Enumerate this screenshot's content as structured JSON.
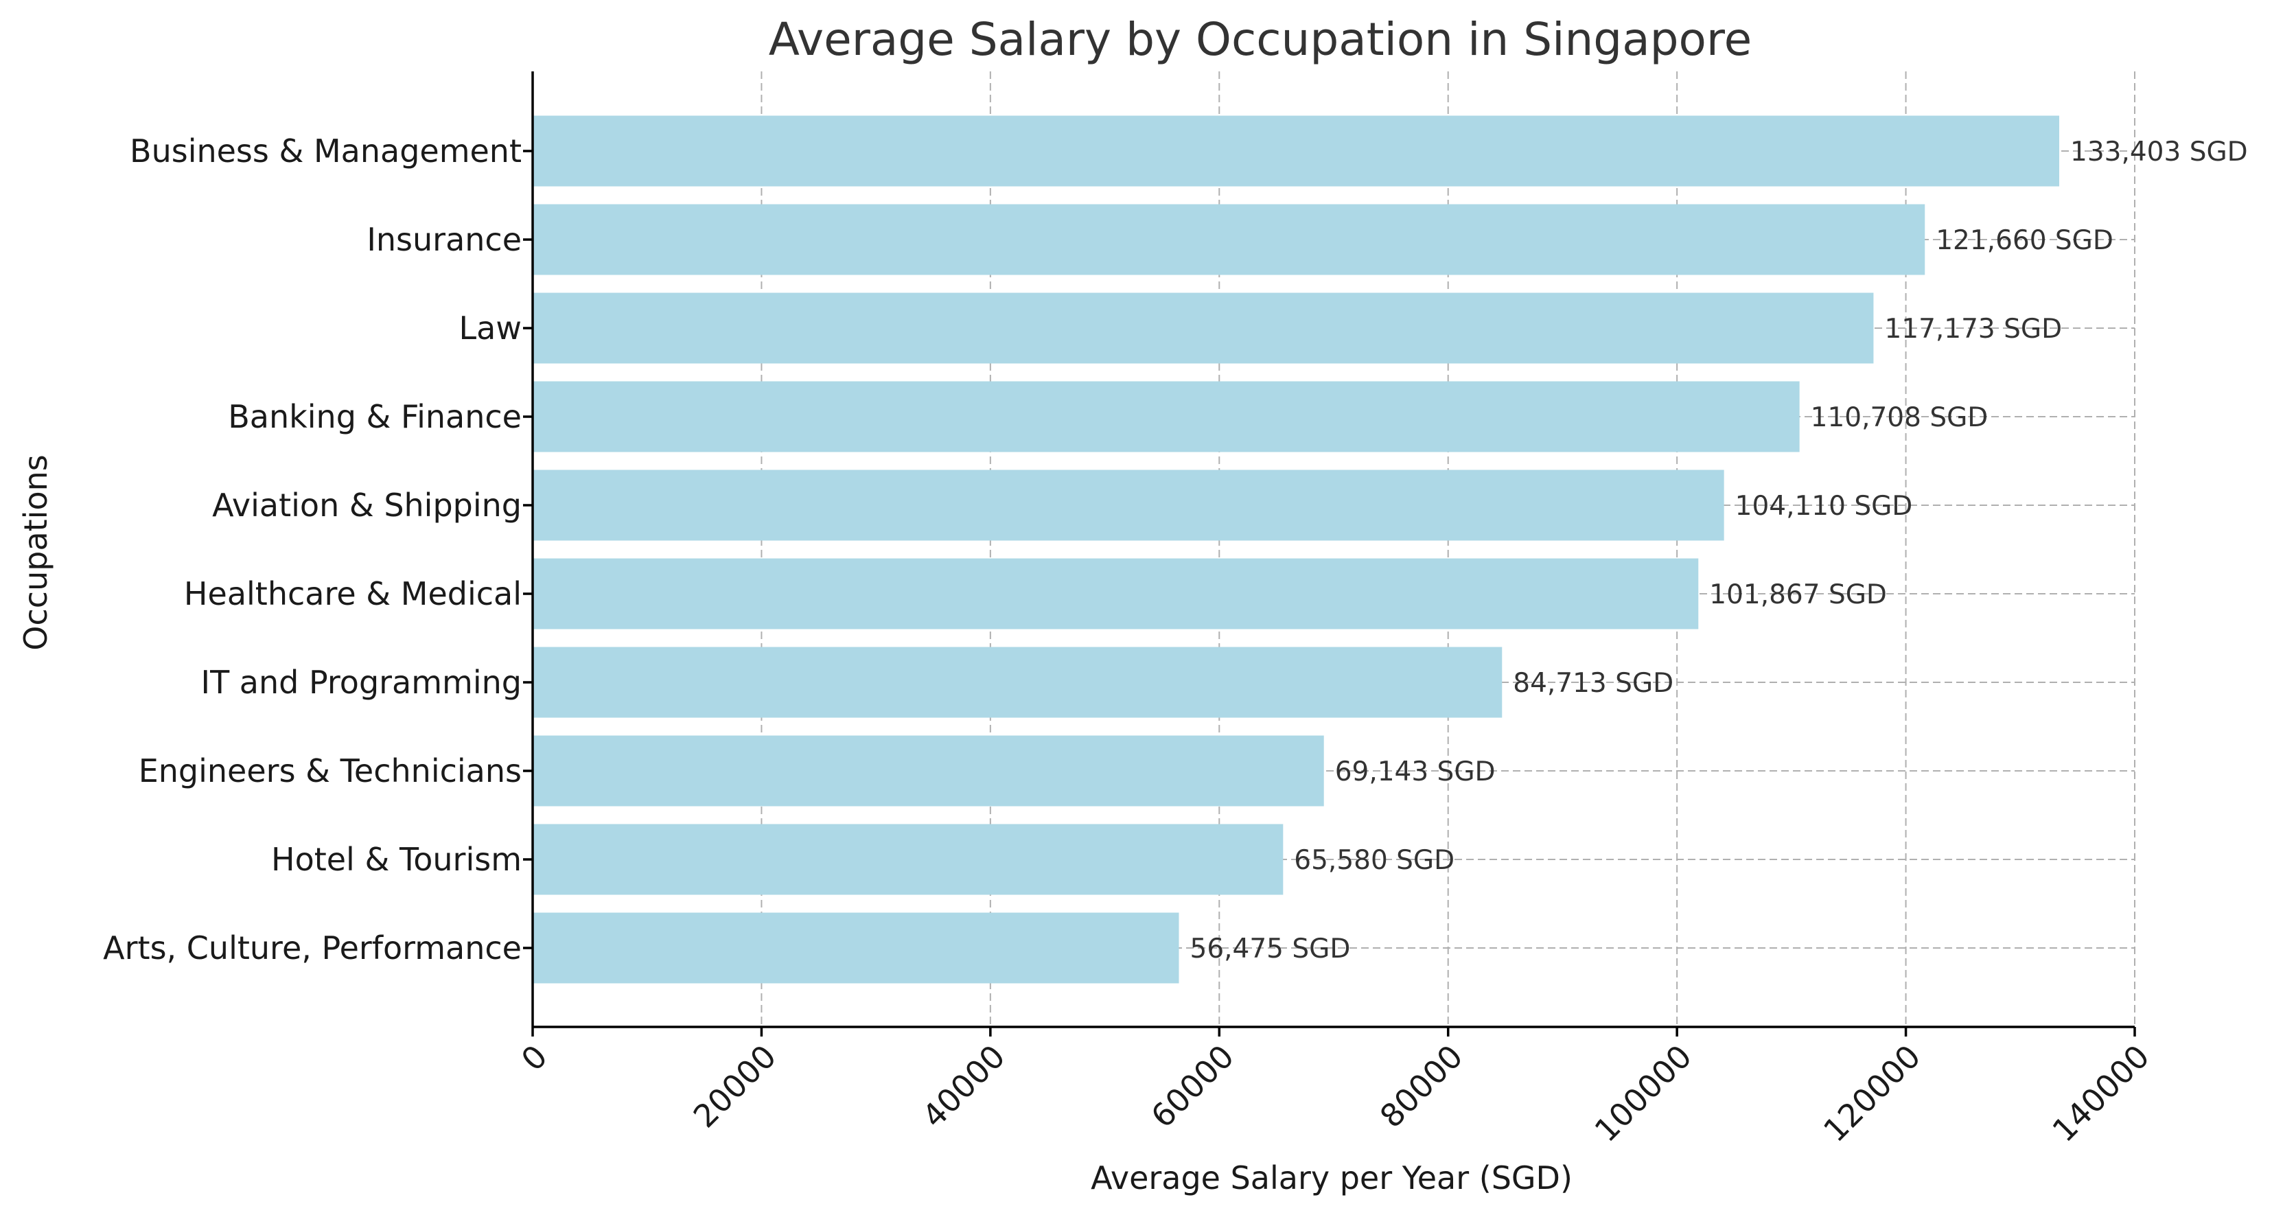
{
  "chart_data": {
    "type": "bar",
    "orientation": "horizontal",
    "title": "Average Salary by Occupation in Singapore",
    "xlabel": "Average Salary per Year (SGD)",
    "ylabel": "Occupations",
    "xlim": [
      0,
      140000
    ],
    "xticks": [
      "0",
      "20000",
      "40000",
      "60000",
      "80000",
      "100000",
      "120000",
      "140000"
    ],
    "grid": true,
    "bar_color": "#add8e6",
    "categories": [
      "Business & Management",
      "Insurance",
      "Law",
      "Banking & Finance",
      "Aviation & Shipping",
      "Healthcare & Medical",
      "IT and Programming",
      "Engineers & Technicians",
      "Hotel & Tourism",
      "Arts, Culture, Performance"
    ],
    "values": [
      133403,
      121660,
      117173,
      110708,
      104110,
      101867,
      84713,
      69143,
      65580,
      56475
    ],
    "data_labels": [
      "133,403 SGD",
      "121,660 SGD",
      "117,173 SGD",
      "110,708 SGD",
      "104,110 SGD",
      "101,867 SGD",
      "84,713 SGD",
      "69,143 SGD",
      "65,580 SGD",
      "56,475 SGD"
    ]
  }
}
